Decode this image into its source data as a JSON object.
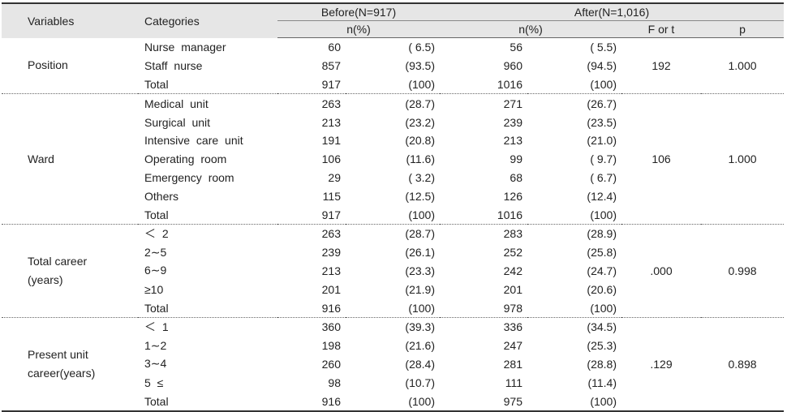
{
  "header": {
    "variables": "Variables",
    "categories": "Categories",
    "before": "Before(N=917)",
    "after": "After(N=1,016)",
    "before_sub": "n(%)",
    "after_sub": "n(%)",
    "f_or_t": "F  or  t",
    "p": "p"
  },
  "groups": [
    {
      "variable": "Position",
      "stat": "192",
      "p": "1.000",
      "rows": [
        {
          "category": "Nurse manager",
          "b_n": "60",
          "b_pct": "( 6.5)",
          "a_n": "56",
          "a_pct": "( 5.5)"
        },
        {
          "category": "Staff nurse",
          "b_n": "857",
          "b_pct": "(93.5)",
          "a_n": "960",
          "a_pct": "(94.5)"
        },
        {
          "category": "Total",
          "b_n": "917",
          "b_pct": "(100)",
          "a_n": "1016",
          "a_pct": "(100)"
        }
      ]
    },
    {
      "variable": "Ward",
      "stat": "106",
      "p": "1.000",
      "rows": [
        {
          "category": "Medical unit",
          "b_n": "263",
          "b_pct": "(28.7)",
          "a_n": "271",
          "a_pct": "(26.7)"
        },
        {
          "category": "Surgical unit",
          "b_n": "213",
          "b_pct": "(23.2)",
          "a_n": "239",
          "a_pct": "(23.5)"
        },
        {
          "category": "Intensive care unit",
          "b_n": "191",
          "b_pct": "(20.8)",
          "a_n": "213",
          "a_pct": "(21.0)"
        },
        {
          "category": "Operating room",
          "b_n": "106",
          "b_pct": "(11.6)",
          "a_n": "99",
          "a_pct": "( 9.7)"
        },
        {
          "category": "Emergency room",
          "b_n": "29",
          "b_pct": "( 3.2)",
          "a_n": "68",
          "a_pct": "( 6.7)"
        },
        {
          "category": "Others",
          "b_n": "115",
          "b_pct": "(12.5)",
          "a_n": "126",
          "a_pct": "(12.4)"
        },
        {
          "category": "Total",
          "b_n": "917",
          "b_pct": "(100)",
          "a_n": "1016",
          "a_pct": "(100)"
        }
      ]
    },
    {
      "variable": "Total career",
      "variable2": "(years)",
      "stat": ".000",
      "p": "0.998",
      "rows": [
        {
          "category": "＜ 2",
          "b_n": "263",
          "b_pct": "(28.7)",
          "a_n": "283",
          "a_pct": "(28.9)"
        },
        {
          "category": "2∼5",
          "b_n": "239",
          "b_pct": "(26.1)",
          "a_n": "252",
          "a_pct": "(25.8)"
        },
        {
          "category": "6∼9",
          "b_n": "213",
          "b_pct": "(23.3)",
          "a_n": "242",
          "a_pct": "(24.7)"
        },
        {
          "category": "≥10",
          "b_n": "201",
          "b_pct": "(21.9)",
          "a_n": "201",
          "a_pct": "(20.6)"
        },
        {
          "category": "Total",
          "b_n": "916",
          "b_pct": "(100)",
          "a_n": "978",
          "a_pct": "(100)"
        }
      ]
    },
    {
      "variable": "Present unit",
      "variable2": "career(years)",
      "stat": ".129",
      "p": "0.898",
      "rows": [
        {
          "category": "＜ 1",
          "b_n": "360",
          "b_pct": "(39.3)",
          "a_n": "336",
          "a_pct": "(34.5)"
        },
        {
          "category": "1∼2",
          "b_n": "198",
          "b_pct": "(21.6)",
          "a_n": "247",
          "a_pct": "(25.3)"
        },
        {
          "category": "3∼4",
          "b_n": "260",
          "b_pct": "(28.4)",
          "a_n": "281",
          "a_pct": "(28.8)"
        },
        {
          "category": "5 ≤",
          "b_n": "98",
          "b_pct": "(10.7)",
          "a_n": "111",
          "a_pct": "(11.4)"
        },
        {
          "category": "Total",
          "b_n": "916",
          "b_pct": "(100)",
          "a_n": "975",
          "a_pct": "(100)"
        }
      ]
    }
  ]
}
